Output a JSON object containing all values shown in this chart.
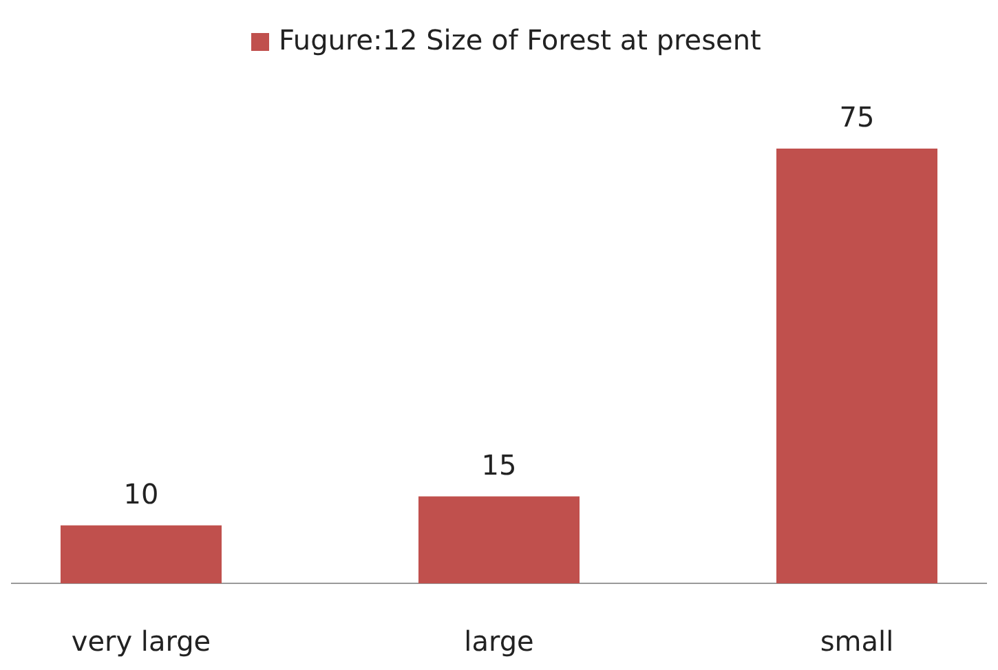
{
  "chart_data": {
    "type": "bar",
    "categories": [
      "very large",
      "large",
      "small"
    ],
    "series": [
      {
        "name": "Fugure:12 Size of Forest at present",
        "color": "#c0504d",
        "values": [
          10,
          15,
          75
        ]
      }
    ],
    "data_labels": true,
    "legend": "top"
  }
}
